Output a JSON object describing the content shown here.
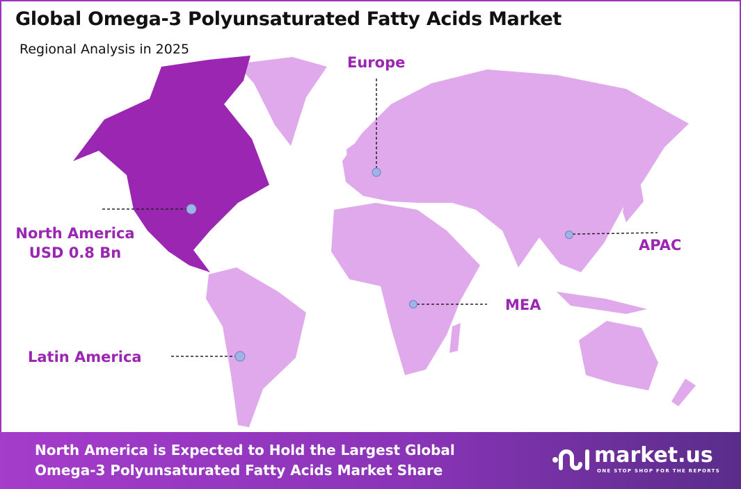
{
  "header": {
    "title": "Global Omega-3 Polyunsaturated Fatty Acids Market",
    "subtitle": "Regional Analysis in 2025"
  },
  "regions": [
    {
      "name": "North America",
      "value": "USD 0.8 Bn",
      "highlighted": true
    },
    {
      "name": "Europe"
    },
    {
      "name": "APAC"
    },
    {
      "name": "MEA"
    },
    {
      "name": "Latin America"
    }
  ],
  "colors": {
    "highlight": "#9a26b2",
    "land": "#e0a9ec",
    "label": "#9a26b2",
    "marker": "#9fb4e6"
  },
  "footer": {
    "line1": "North America  is Expected to Hold the Largest Global",
    "line2": "Omega-3 Polyunsaturated Fatty Acids Market Share"
  },
  "logo": {
    "name": "market.us",
    "tagline": "ONE STOP SHOP FOR THE REPORTS"
  }
}
